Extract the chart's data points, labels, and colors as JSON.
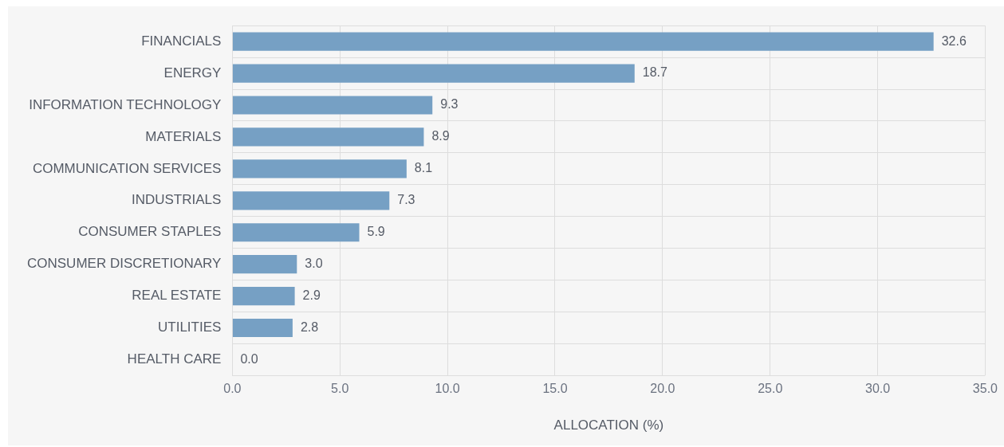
{
  "chart_data": {
    "type": "bar",
    "orientation": "horizontal",
    "xlabel": "ALLOCATION (%)",
    "categories": [
      "FINANCIALS",
      "ENERGY",
      "INFORMATION TECHNOLOGY",
      "MATERIALS",
      "COMMUNICATION SERVICES",
      "INDUSTRIALS",
      "CONSUMER STAPLES",
      "CONSUMER DISCRETIONARY",
      "REAL ESTATE",
      "UTILITIES",
      "HEALTH CARE"
    ],
    "values": [
      32.6,
      18.7,
      9.3,
      8.9,
      8.1,
      7.3,
      5.9,
      3.0,
      2.9,
      2.8,
      0.0
    ],
    "value_labels": [
      "32.6",
      "18.7",
      "9.3",
      "8.9",
      "8.1",
      "7.3",
      "5.9",
      "3.0",
      "2.9",
      "2.8",
      "0.0"
    ],
    "color": "#76a0c4",
    "xlim": [
      0,
      35
    ],
    "xticks": [
      {
        "value": 0,
        "label": "0.0"
      },
      {
        "value": 5,
        "label": "5.0"
      },
      {
        "value": 10,
        "label": "10.0"
      },
      {
        "value": 15,
        "label": "15.0"
      },
      {
        "value": 20,
        "label": "20.0"
      },
      {
        "value": 25,
        "label": "25.0"
      },
      {
        "value": 30,
        "label": "30.0"
      },
      {
        "value": 35,
        "label": "35.0"
      }
    ],
    "grid": true,
    "legend": false
  }
}
